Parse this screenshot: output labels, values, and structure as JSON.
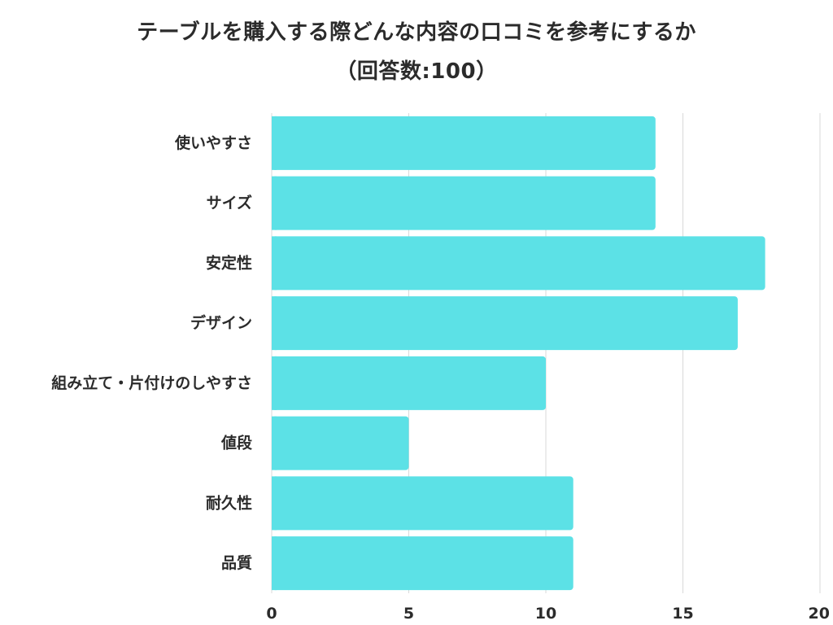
{
  "chart_data": {
    "type": "bar",
    "orientation": "horizontal",
    "title_lines": [
      "テーブルを購入する際どんな内容の口コミを参考にするか",
      "（回答数:100）"
    ],
    "categories": [
      "使いやすさ",
      "サイズ",
      "安定性",
      "デザイン",
      "組み立て・片付けのしやすさ",
      "値段",
      "耐久性",
      "品質"
    ],
    "values": [
      14,
      14,
      18,
      17,
      10,
      5,
      11,
      11
    ],
    "xlim": [
      0,
      20
    ],
    "xticks": [
      0,
      5,
      10,
      15,
      20
    ],
    "grid": true,
    "bar_color": "#5ce1e6",
    "grid_color": "#d9d9d9"
  }
}
